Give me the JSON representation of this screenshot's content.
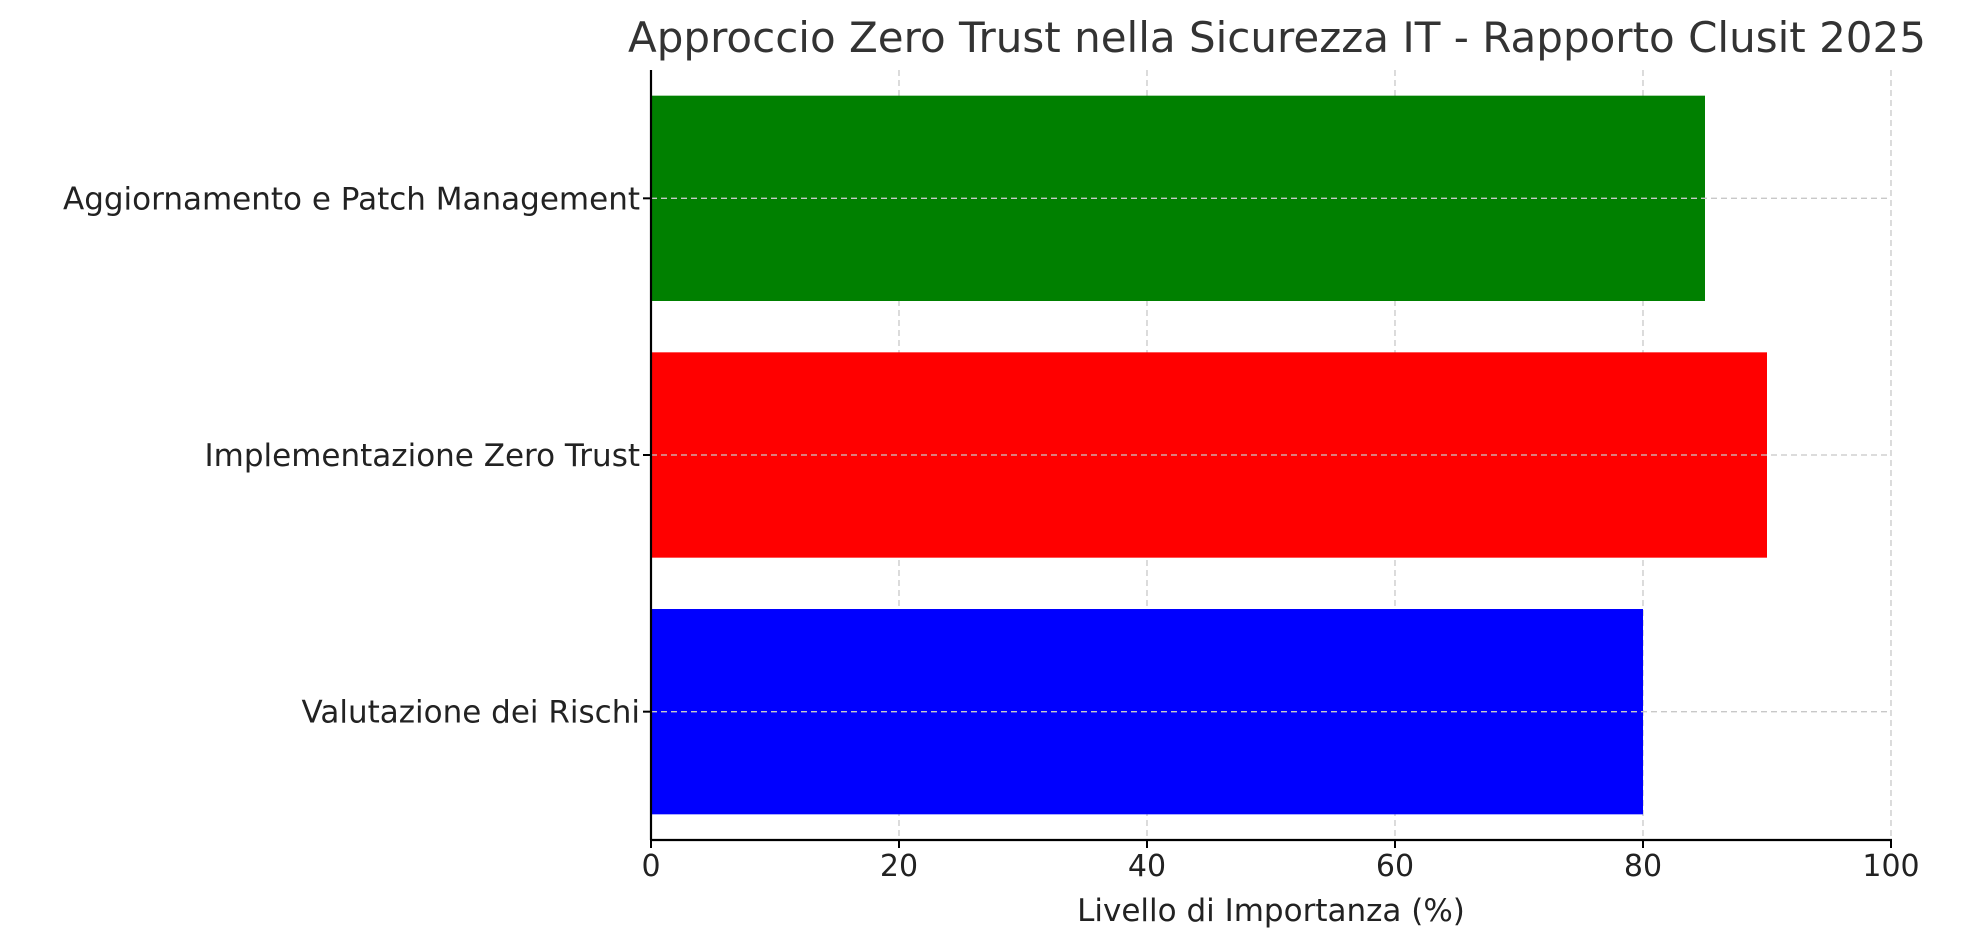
{
  "chart_data": {
    "type": "bar",
    "orientation": "horizontal",
    "title": "Approccio Zero Trust nella Sicurezza IT - Rapporto Clusit 2025",
    "xlabel": "Livello di Importanza (%)",
    "ylabel": "",
    "xlim": [
      0,
      100
    ],
    "xticks": [
      0,
      20,
      40,
      60,
      80,
      100
    ],
    "grid": true,
    "categories": [
      "Valutazione dei Rischi",
      "Implementazione Zero Trust",
      "Aggiornamento e Patch Management"
    ],
    "values": [
      80,
      90,
      85
    ],
    "colors": [
      "#0000ff",
      "#ff0000",
      "#008000"
    ]
  }
}
